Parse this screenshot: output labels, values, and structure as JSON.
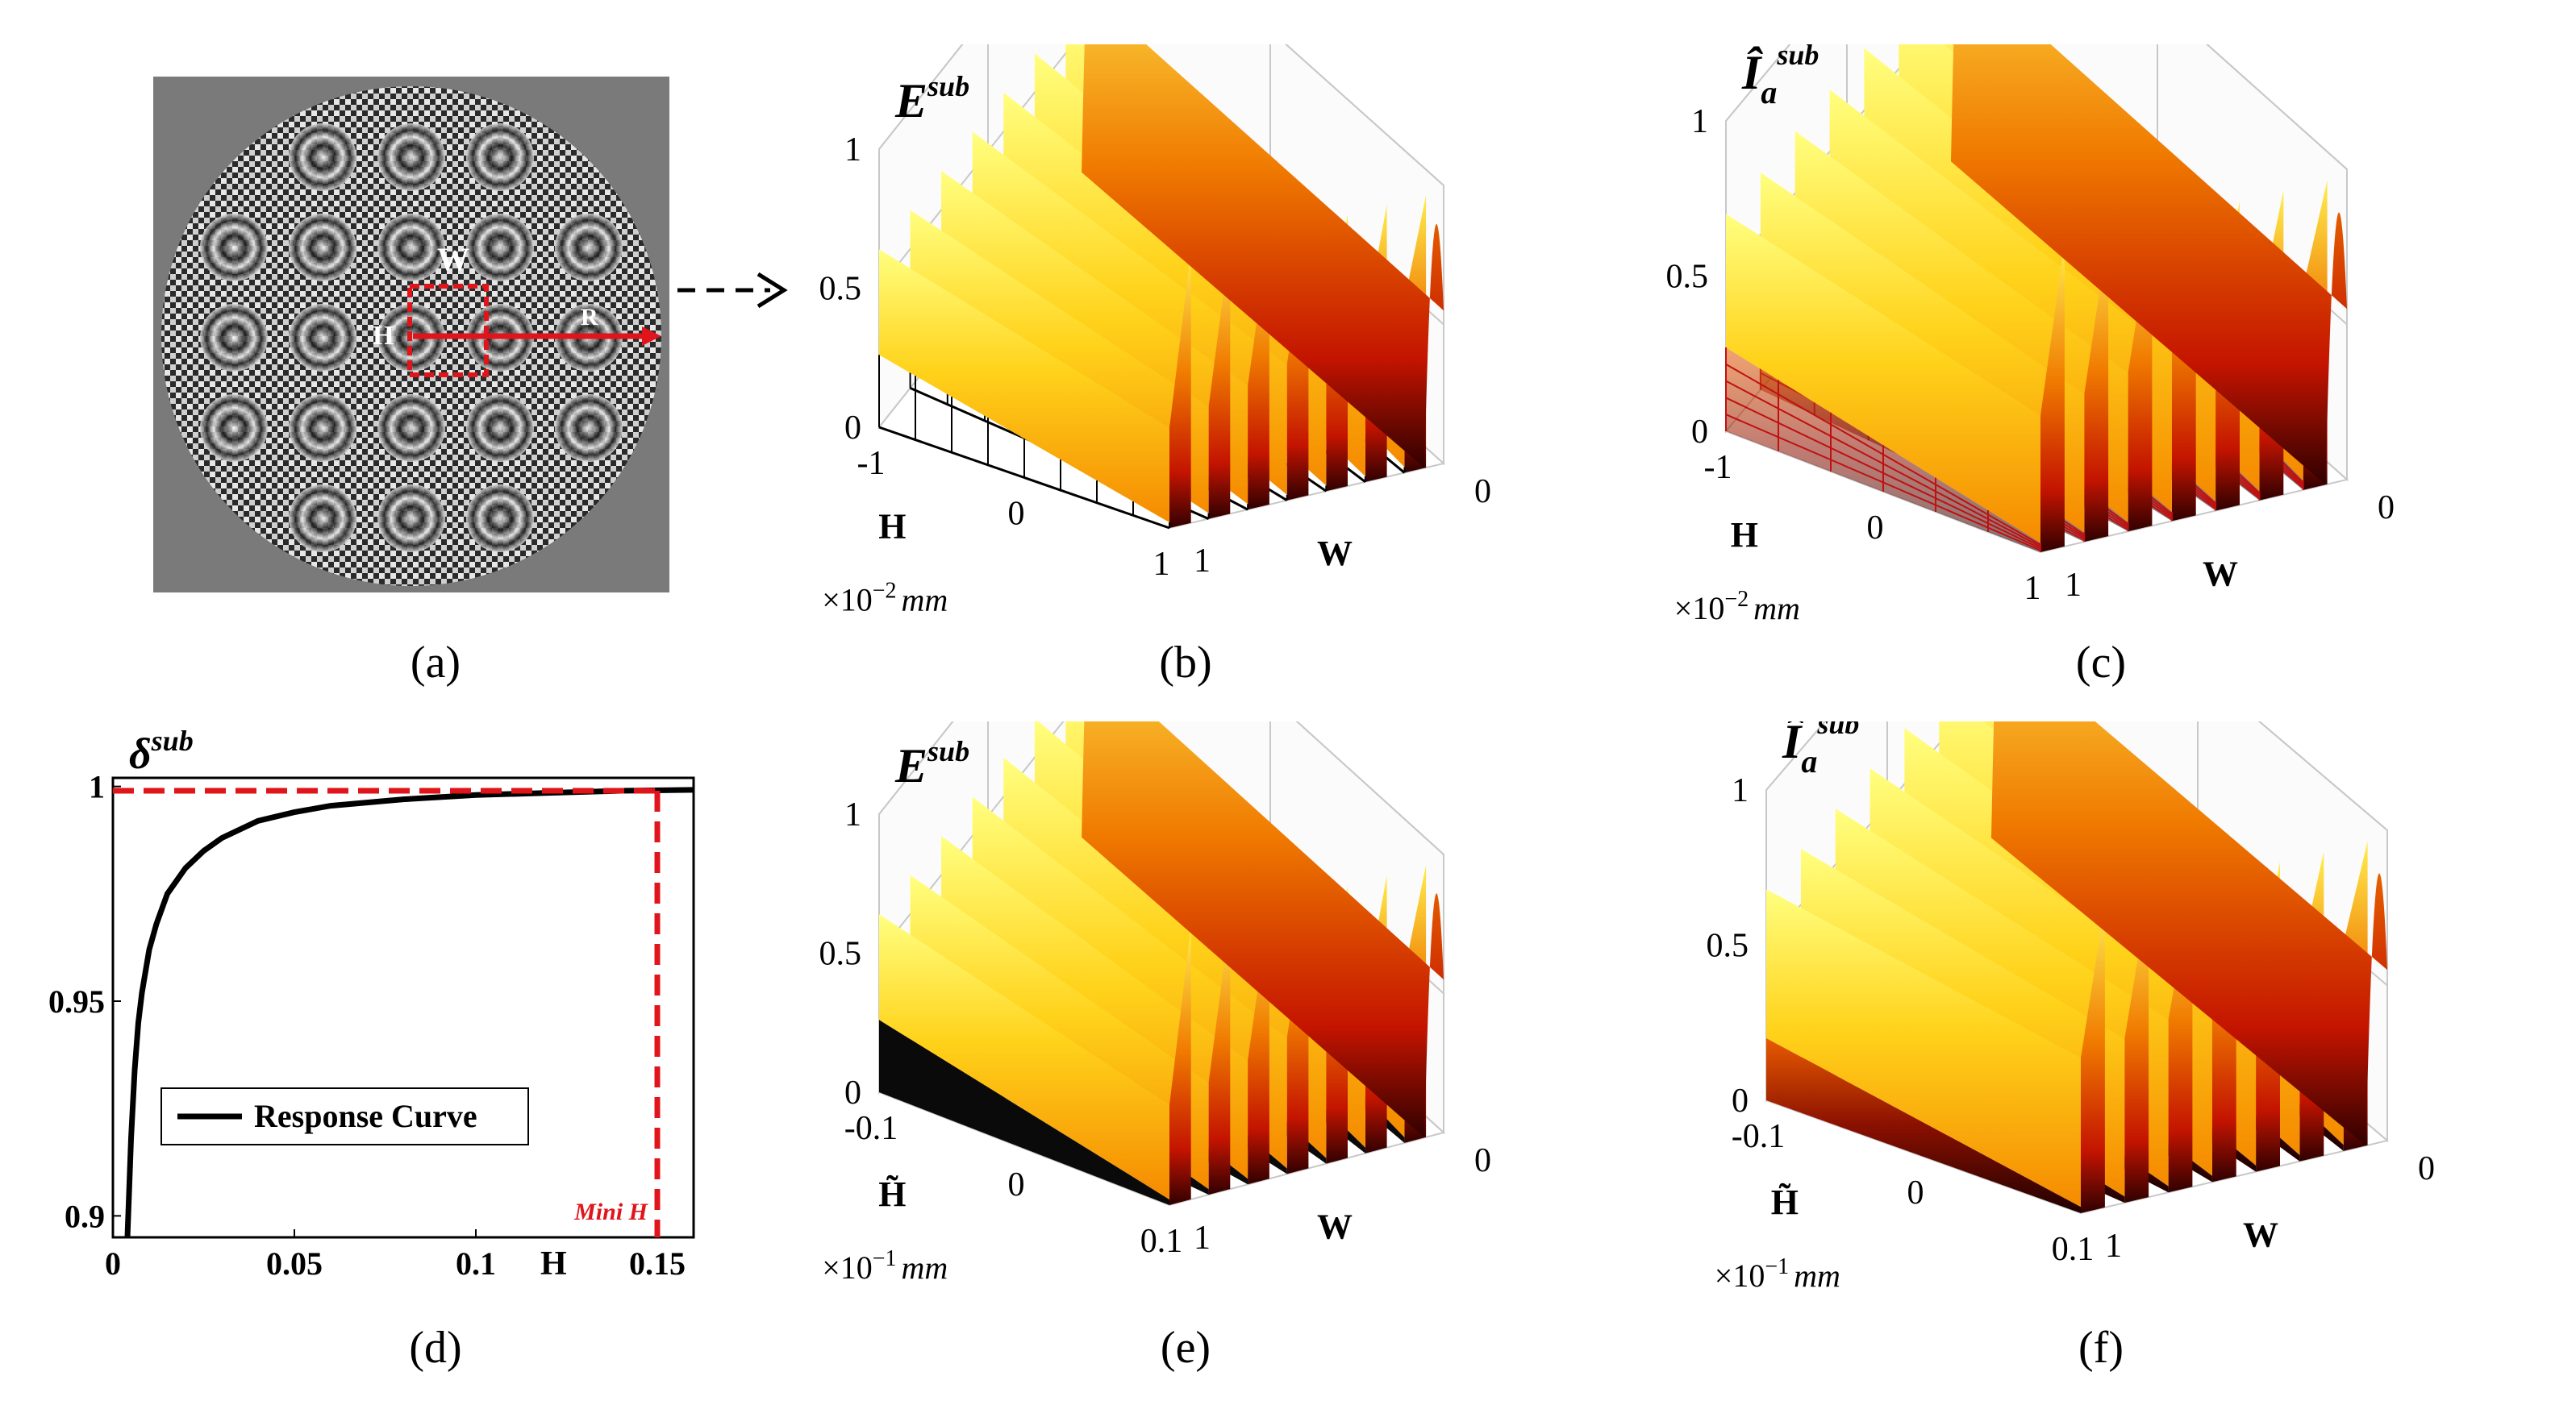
{
  "captions": [
    "(a)",
    "(b)",
    "(c)",
    "(d)",
    "(e)",
    "(f)"
  ],
  "panel_a": {
    "region_labels": {
      "width": "W",
      "height": "H",
      "radius": "R"
    },
    "colors": {
      "background": "#7a7a7a",
      "marker": "#e0141b"
    }
  },
  "chart_data": [
    {
      "id": "d",
      "type": "line",
      "title": "δ",
      "title_sup": "sub",
      "xlabel": "H",
      "ylabel": "",
      "xlim": [
        0,
        0.16
      ],
      "ylim": [
        0.895,
        1.002
      ],
      "x_ticks": [
        0,
        0.05,
        0.1,
        0.15
      ],
      "x_tick_labels": [
        "0",
        "0.05",
        "0.1",
        "0.15"
      ],
      "y_ticks": [
        0.9,
        0.95,
        1
      ],
      "y_tick_labels": [
        "0.9",
        "0.95",
        "1"
      ],
      "legend": {
        "entry": "Response Curve",
        "placement": "bottom-left"
      },
      "series": [
        {
          "name": "Response Curve",
          "x": [
            0.004,
            0.005,
            0.006,
            0.007,
            0.008,
            0.01,
            0.012,
            0.015,
            0.02,
            0.025,
            0.03,
            0.04,
            0.05,
            0.06,
            0.08,
            0.1,
            0.12,
            0.14,
            0.16
          ],
          "y": [
            0.895,
            0.918,
            0.934,
            0.945,
            0.952,
            0.962,
            0.968,
            0.975,
            0.981,
            0.985,
            0.988,
            0.992,
            0.994,
            0.9955,
            0.997,
            0.998,
            0.9985,
            0.999,
            0.9992
          ]
        }
      ],
      "annotations": [
        {
          "text": "Mini H",
          "x": 0.15,
          "y": 0.999,
          "color": "#e0141b"
        }
      ],
      "colors": {
        "curve": "#000000",
        "threshold": "#e0141b"
      }
    },
    {
      "id": "b",
      "type": "surface",
      "z_label": "E",
      "z_label_sup": "sub",
      "z_ticks": [
        "0",
        "0.5",
        "1"
      ],
      "h_axis_label": "H",
      "h_ticks": [
        "-1",
        "0",
        "1"
      ],
      "h_unit_prefix": "×10",
      "h_unit_exp": "−2",
      "h_unit": "mm",
      "w_axis_label": "W",
      "w_ticks": [
        "1",
        "0"
      ],
      "colormap": "hot"
    },
    {
      "id": "c",
      "type": "surface",
      "z_label": "Î",
      "z_label_sub": "a",
      "z_label_sup": "sub",
      "z_ticks": [
        "0",
        "0.5",
        "1"
      ],
      "h_axis_label": "H",
      "h_ticks": [
        "-1",
        "0",
        "1"
      ],
      "h_unit_prefix": "×10",
      "h_unit_exp": "−2",
      "h_unit": "mm",
      "w_axis_label": "W",
      "w_ticks": [
        "1",
        "0"
      ],
      "colormap": "hot"
    },
    {
      "id": "e",
      "type": "surface",
      "z_label": "E",
      "z_label_sup": "sub",
      "z_ticks": [
        "0",
        "0.5",
        "1"
      ],
      "h_axis_label": "H̃",
      "h_ticks": [
        "-0.1",
        "0",
        "0.1"
      ],
      "h_unit_prefix": "×10",
      "h_unit_exp": "−1",
      "h_unit": "mm",
      "w_axis_label": "W",
      "w_ticks": [
        "1",
        "0"
      ],
      "colormap": "hot"
    },
    {
      "id": "f",
      "type": "surface",
      "z_label": "Î",
      "z_label_sub": "a",
      "z_label_sup": "sub",
      "z_ticks": [
        "0",
        "0.5",
        "1"
      ],
      "h_axis_label": "H̃",
      "h_ticks": [
        "-0.1",
        "0",
        "0.1"
      ],
      "h_unit_prefix": "×10",
      "h_unit_exp": "−1",
      "h_unit": "mm",
      "w_axis_label": "W",
      "w_ticks": [
        "1",
        "0"
      ],
      "colormap": "hot"
    }
  ]
}
